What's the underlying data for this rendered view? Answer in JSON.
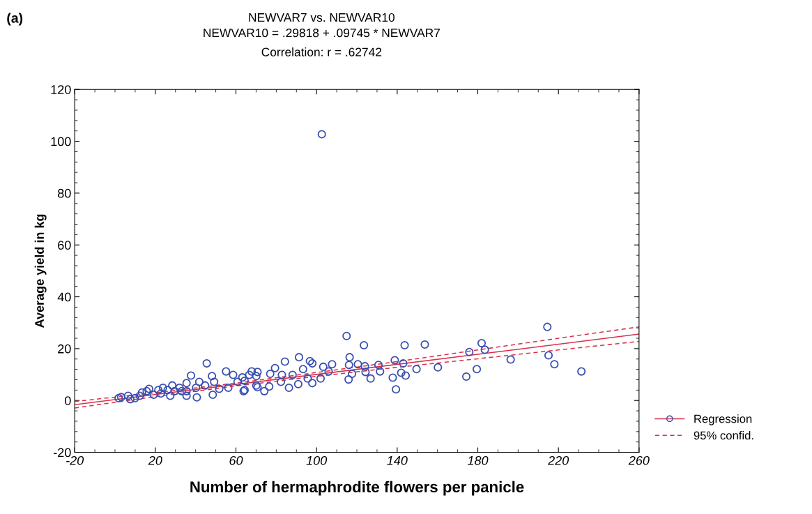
{
  "chart_data": {
    "type": "scatter",
    "title": "NEWVAR7 vs. NEWVAR10",
    "subtitle": "NEWVAR10 = .29818 + .09745 * NEWVAR7\nCorrelation: r = .62742",
    "xlabel": "Number of hermaphrodite flowers per panicle",
    "ylabel": "Average yield in kg",
    "annotations": [
      "(a)"
    ],
    "xlim": [
      -20,
      260
    ],
    "xticks": [
      -20,
      20,
      60,
      100,
      140,
      180,
      220,
      260
    ],
    "ylim": [
      -20,
      120
    ],
    "yticks": [
      -20,
      0,
      20,
      40,
      60,
      80,
      100,
      120
    ],
    "grid": false,
    "legend": "bottom right",
    "series": [
      {
        "marker": "circle",
        "color": "#3a4fb0",
        "x": [
          214.5,
          153.7,
          181.9,
          175.8,
          183.5,
          160.2,
          174.3,
          179.5,
          196.3,
          215.1,
          218,
          231.4,
          114.9,
          123.5,
          143.7,
          139.4,
          142,
          144.2,
          149.6,
          138.8,
          143,
          137.8,
          131.5,
          130.7,
          124,
          124.3,
          120.5,
          116.4,
          116.1,
          117.6,
          115.9,
          107.7,
          106,
          103.3,
          97.9,
          96.7,
          91.3,
          84.3,
          79.4,
          93.3,
          95.6,
          86.3,
          90.9,
          97.9,
          102,
          88.1,
          82.8,
          77,
          74.1,
          70.1,
          70.7,
          66.6,
          63.8,
          76.5,
          82.3,
          64.3,
          126.8,
          45.5,
          37.7,
          40.6,
          48.1,
          48.5,
          55.1,
          58.6,
          63.2,
          67.8,
          70.7,
          64.3,
          56.2,
          51.7,
          44.7,
          41.8,
          35.5,
          32,
          35.5,
          29.6,
          26.1,
          21.5,
          16.9,
          13.4,
          9.9,
          6.5,
          3.1,
          1.8,
          7.6,
          12.3,
          19.2,
          22.7,
          27.4,
          15.7,
          23.8,
          28.4,
          33.1,
          35.5,
          40.2,
          49.2,
          60.8,
          70.1,
          102.6
        ],
        "values": [
          28.4,
          21.6,
          22.1,
          18.7,
          19.6,
          12.8,
          9.2,
          12.1,
          15.8,
          17.4,
          14.0,
          11.2,
          24.9,
          21.3,
          21.3,
          4.3,
          10.7,
          9.6,
          12.1,
          15.5,
          14.3,
          8.8,
          11.2,
          13.7,
          13.2,
          11.0,
          14.0,
          16.7,
          13.7,
          10.3,
          8.1,
          14.0,
          11.2,
          13.0,
          14.3,
          15.2,
          16.7,
          15.0,
          12.5,
          12.1,
          8.5,
          4.9,
          6.3,
          6.7,
          8.5,
          9.9,
          9.9,
          10.3,
          3.6,
          5.8,
          11.0,
          9.9,
          3.6,
          5.4,
          7.2,
          7.6,
          8.5,
          14.3,
          9.6,
          1.2,
          9.4,
          2.2,
          11.2,
          9.9,
          8.9,
          11.2,
          5.1,
          4.0,
          4.9,
          4.5,
          5.8,
          7.2,
          6.7,
          4.9,
          3.6,
          3.6,
          4.0,
          4.0,
          4.5,
          3.1,
          0.9,
          1.8,
          1.3,
          0.9,
          0.5,
          1.8,
          2.2,
          2.7,
          1.8,
          3.6,
          4.9,
          5.8,
          3.6,
          1.8,
          4.9,
          7.2,
          7.2,
          9.4,
          102.7
        ]
      },
      {
        "type": "line",
        "name": "Regression",
        "color": "#d9304a",
        "line_style": "solid",
        "x": [
          -20,
          260
        ],
        "values": [
          -1.6,
          25.6
        ]
      },
      {
        "type": "line",
        "name": "95% confid.",
        "color": "#d9304a",
        "line_style": "dashed",
        "x": [
          -20,
          20,
          60,
          100,
          140,
          180,
          220,
          260
        ],
        "values": [
          -2.9,
          1.5,
          5.6,
          9.3,
          12.8,
          16.1,
          19.5,
          22.8
        ]
      },
      {
        "type": "line",
        "color": "#d9304a",
        "line_style": "dashed",
        "x": [
          -20,
          20,
          60,
          100,
          140,
          180,
          220,
          260
        ],
        "values": [
          -0.4,
          3.0,
          6.7,
          10.8,
          15.0,
          19.5,
          24.0,
          28.4
        ]
      }
    ]
  }
}
